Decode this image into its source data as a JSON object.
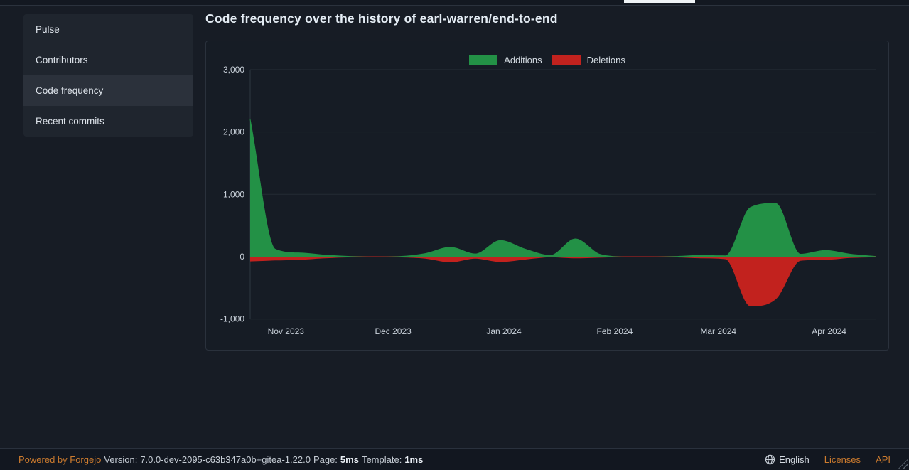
{
  "header": {
    "active_tab_underline_color": "#eff3f6"
  },
  "sidebar": {
    "items": [
      {
        "label": "Pulse",
        "active": false
      },
      {
        "label": "Contributors",
        "active": false
      },
      {
        "label": "Code frequency",
        "active": true
      },
      {
        "label": "Recent commits",
        "active": false
      }
    ]
  },
  "main": {
    "title": "Code frequency over the history of earl-warren/end-to-end"
  },
  "chart_data": {
    "type": "area",
    "title": "Code frequency over the history of earl-warren/end-to-end",
    "legend_position": "top-center",
    "grid": true,
    "ylim": [
      -1000,
      3000
    ],
    "y_ticks": [
      3000,
      2000,
      1000,
      0,
      -1000
    ],
    "domain": {
      "start": "2023-10-22",
      "end": "2024-04-14"
    },
    "x_ticks": [
      {
        "label": "Nov 2023",
        "date": "2023-11-01"
      },
      {
        "label": "Dec 2023",
        "date": "2023-12-01"
      },
      {
        "label": "Jan 2024",
        "date": "2024-01-01"
      },
      {
        "label": "Feb 2024",
        "date": "2024-02-01"
      },
      {
        "label": "Mar 2024",
        "date": "2024-03-01"
      },
      {
        "label": "Apr 2024",
        "date": "2024-04-01"
      }
    ],
    "x_dates": [
      "2023-10-22",
      "2023-10-29",
      "2023-11-05",
      "2023-11-12",
      "2023-11-19",
      "2023-11-26",
      "2023-12-03",
      "2023-12-10",
      "2023-12-17",
      "2023-12-24",
      "2023-12-31",
      "2024-01-07",
      "2024-01-14",
      "2024-01-21",
      "2024-01-28",
      "2024-02-04",
      "2024-02-11",
      "2024-02-18",
      "2024-02-25",
      "2024-03-03",
      "2024-03-10",
      "2024-03-17",
      "2024-03-24",
      "2024-03-31",
      "2024-04-07",
      "2024-04-14"
    ],
    "series": [
      {
        "name": "Additions",
        "color": "#239146",
        "values": [
          2200,
          120,
          60,
          25,
          5,
          0,
          5,
          50,
          150,
          45,
          260,
          120,
          20,
          285,
          35,
          0,
          0,
          5,
          20,
          15,
          790,
          855,
          40,
          100,
          40,
          5
        ]
      },
      {
        "name": "Deletions",
        "color": "#c2221e",
        "values": [
          -70,
          -55,
          -45,
          -20,
          -5,
          0,
          -5,
          -25,
          -85,
          -25,
          -80,
          -40,
          -5,
          -20,
          -10,
          0,
          0,
          -5,
          -20,
          -35,
          -790,
          -680,
          -60,
          -45,
          -15,
          -2
        ]
      }
    ]
  },
  "footer": {
    "powered_by": "Powered by Forgejo",
    "version_label": "Version:",
    "version": "7.0.0-dev-2095-c63b347a0b+gitea-1.22.0",
    "page_label": "Page:",
    "page_time": "5ms",
    "template_label": "Template:",
    "template_time": "1ms",
    "language": "English",
    "licenses": "Licenses",
    "api": "API"
  },
  "colors": {
    "additions": "#239146",
    "deletions": "#c2221e",
    "link_orange": "#cc7b2e",
    "grid": "#232b35",
    "axis": "#2e3741",
    "tick_text": "#c9d1da"
  }
}
